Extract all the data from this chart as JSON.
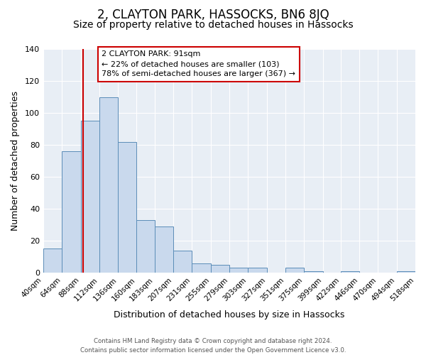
{
  "title": "2, CLAYTON PARK, HASSOCKS, BN6 8JQ",
  "subtitle": "Size of property relative to detached houses in Hassocks",
  "xlabel": "Distribution of detached houses by size in Hassocks",
  "ylabel": "Number of detached properties",
  "bin_edges": [
    40,
    64,
    88,
    112,
    136,
    160,
    183,
    207,
    231,
    255,
    279,
    303,
    327,
    351,
    375,
    399,
    422,
    446,
    470,
    494,
    518
  ],
  "bar_heights": [
    15,
    76,
    95,
    110,
    82,
    33,
    29,
    14,
    6,
    5,
    3,
    3,
    0,
    3,
    1,
    0,
    1,
    0,
    0,
    1
  ],
  "bar_color": "#c9d9ed",
  "bar_edge_color": "#5b8db8",
  "property_line_x": 91,
  "property_line_color": "#cc0000",
  "annotation_line1": "2 CLAYTON PARK: 91sqm",
  "annotation_line2": "← 22% of detached houses are smaller (103)",
  "annotation_line3": "78% of semi-detached houses are larger (367) →",
  "annotation_box_color": "#cc0000",
  "ylim": [
    0,
    140
  ],
  "yticks": [
    0,
    20,
    40,
    60,
    80,
    100,
    120,
    140
  ],
  "tick_labels": [
    "40sqm",
    "64sqm",
    "88sqm",
    "112sqm",
    "136sqm",
    "160sqm",
    "183sqm",
    "207sqm",
    "231sqm",
    "255sqm",
    "279sqm",
    "303sqm",
    "327sqm",
    "351sqm",
    "375sqm",
    "399sqm",
    "422sqm",
    "446sqm",
    "470sqm",
    "494sqm",
    "518sqm"
  ],
  "background_color": "#e8eef5",
  "footer_line1": "Contains HM Land Registry data © Crown copyright and database right 2024.",
  "footer_line2": "Contains public sector information licensed under the Open Government Licence v3.0.",
  "title_fontsize": 12,
  "subtitle_fontsize": 10,
  "axis_label_fontsize": 9,
  "tick_fontsize": 7.5
}
